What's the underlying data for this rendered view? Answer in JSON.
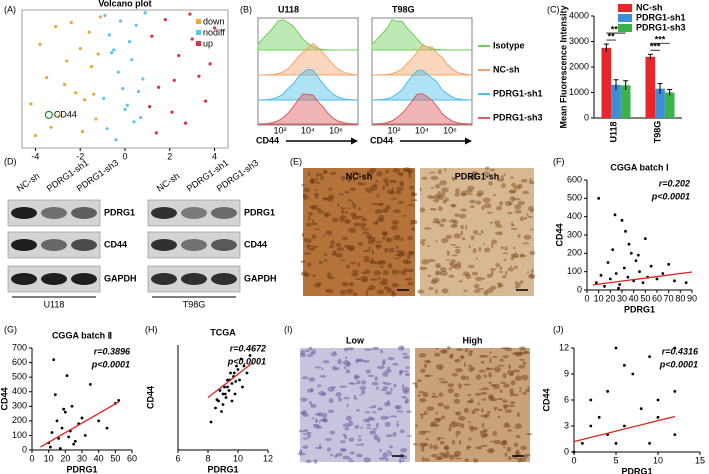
{
  "chart_data": [
    {
      "type": "scatter",
      "title": "Volcano plot",
      "xlim": [
        -4.6,
        4.6
      ],
      "ylim": [
        0,
        10
      ],
      "xticks": [
        -4,
        -2,
        0,
        2,
        4
      ],
      "box": true,
      "legend": "top-right",
      "series": [
        {
          "name": "down",
          "color": "#e8a83a",
          "x": [
            -4.2,
            -3.8,
            -3.5,
            -3.1,
            -2.9,
            -2.6,
            -2.4,
            -2.2,
            -2.0,
            -1.8,
            -1.6,
            -1.5,
            -1.3,
            -1.2,
            -1.1,
            -3.3,
            -2.7,
            -1.9,
            -1.4,
            -4.0
          ],
          "values": [
            3.2,
            7.5,
            5.1,
            8.8,
            2.4,
            6.3,
            9.1,
            4.0,
            7.2,
            3.5,
            8.4,
            5.9,
            2.1,
            6.8,
            9.5,
            1.5,
            4.6,
            1.2,
            3.9,
            0.9
          ]
        },
        {
          "name": "nodiff",
          "color": "#5bc8e8",
          "x": [
            -0.9,
            -0.7,
            -0.5,
            -0.3,
            -0.1,
            0.1,
            0.3,
            0.5,
            0.7,
            0.9,
            -0.8,
            -0.4,
            0.0,
            0.4,
            0.8,
            -0.6,
            -0.2,
            0.2,
            0.6,
            -0.95
          ],
          "values": [
            9.6,
            8.2,
            7.1,
            5.5,
            4.3,
            3.1,
            6.4,
            8.9,
            2.2,
            9.8,
            1.4,
            0.6,
            2.8,
            1.9,
            5.0,
            6.9,
            9.2,
            7.7,
            4.1,
            3.6
          ]
        },
        {
          "name": "up",
          "color": "#e03040",
          "x": [
            1.2,
            1.5,
            1.8,
            2.1,
            2.4,
            2.7,
            3.0,
            3.3,
            3.6,
            4.0,
            1.4,
            2.2,
            2.9,
            3.8,
            1.1
          ],
          "values": [
            8.1,
            4.4,
            9.3,
            2.6,
            6.7,
            1.8,
            7.9,
            5.2,
            3.4,
            8.7,
            1.1,
            4.9,
            9.7,
            6.1,
            3.0
          ]
        }
      ],
      "highlight": {
        "text": "CD44",
        "x": -3.4,
        "y": 2.4
      }
    },
    {
      "type": "bar",
      "ylabel": "Mean Fluorescence Intensity",
      "categories": [
        "U118",
        "T98G"
      ],
      "ylim": [
        0,
        4000
      ],
      "yticks": [
        0,
        1000,
        2000,
        3000,
        4000
      ],
      "legend": "top-right",
      "series": [
        {
          "name": "NC-sh",
          "color": "#e8252a",
          "values": [
            2750,
            2400
          ],
          "errors": [
            150,
            100
          ]
        },
        {
          "name": "PDRG1-sh1",
          "color": "#3b8fd8",
          "values": [
            1300,
            1150
          ],
          "errors": [
            200,
            200
          ]
        },
        {
          "name": "PDRG1-sh3",
          "color": "#3cb34a",
          "values": [
            1280,
            1000
          ],
          "errors": [
            180,
            120
          ]
        }
      ],
      "significance": [
        "***",
        "**",
        "***",
        "***"
      ]
    },
    {
      "type": "scatter",
      "title": "CGGA batch Ⅰ",
      "xlabel": "PDRG1",
      "ylabel": "CD44",
      "xlim": [
        0,
        90
      ],
      "ylim": [
        0,
        600
      ],
      "xticks": [
        0,
        10,
        20,
        30,
        40,
        50,
        60,
        70,
        80,
        90
      ],
      "yticks": [
        0,
        100,
        200,
        300,
        400,
        500,
        600
      ],
      "color": "#000000",
      "x": [
        8,
        12,
        15,
        18,
        20,
        22,
        25,
        28,
        30,
        32,
        35,
        38,
        40,
        42,
        45,
        48,
        50,
        55,
        60,
        65,
        70,
        75,
        85,
        10,
        24,
        33,
        44,
        52,
        27,
        36
      ],
      "values": [
        40,
        80,
        20,
        150,
        60,
        220,
        90,
        30,
        380,
        120,
        70,
        200,
        50,
        160,
        100,
        40,
        280,
        130,
        60,
        90,
        140,
        50,
        40,
        500,
        410,
        320,
        190,
        70,
        10,
        250
      ],
      "fit": {
        "x": [
          5,
          90
        ],
        "y": [
          28,
          98
        ],
        "color": "#e02020"
      },
      "stats": [
        "r=0.202",
        "p<0.0001"
      ]
    },
    {
      "type": "scatter",
      "title": "CGGA batch Ⅱ",
      "xlabel": "PDRG1",
      "ylabel": "CD44",
      "xlim": [
        0,
        60
      ],
      "ylim": [
        0,
        700
      ],
      "xticks": [
        0,
        10,
        20,
        30,
        40,
        50,
        60
      ],
      "yticks": [
        0,
        100,
        200,
        300,
        400,
        500,
        600,
        700
      ],
      "color": "#000000",
      "x": [
        10,
        12,
        14,
        15,
        16,
        18,
        20,
        22,
        24,
        25,
        28,
        30,
        32,
        35,
        40,
        45,
        50,
        13,
        17,
        21,
        26,
        11,
        19,
        23,
        52
      ],
      "values": [
        50,
        120,
        380,
        200,
        80,
        150,
        260,
        90,
        300,
        40,
        180,
        220,
        100,
        450,
        200,
        150,
        320,
        620,
        10,
        510,
        60,
        20,
        280,
        130,
        340
      ],
      "fit": {
        "x": [
          5,
          52
        ],
        "y": [
          20,
          330
        ],
        "color": "#e02020"
      },
      "stats": [
        "r=0.3896",
        "p<0.0001"
      ]
    },
    {
      "type": "scatter",
      "title": "TCGA",
      "xlabel": "PDRG1",
      "ylabel": "CD44",
      "xlim": [
        6,
        12
      ],
      "ylim": [
        2,
        17
      ],
      "xticks": [
        6,
        8,
        10,
        12
      ],
      "color": "#000000",
      "x": [
        8.2,
        8.5,
        8.7,
        8.9,
        9.0,
        9.1,
        9.2,
        9.3,
        9.4,
        9.5,
        9.6,
        9.7,
        9.8,
        9.9,
        10.0,
        10.1,
        10.2,
        10.4,
        10.6,
        10.8,
        9.0,
        9.3,
        9.6,
        8.8,
        9.45,
        9.75,
        10.3,
        8.6,
        9.15,
        9.85
      ],
      "values": [
        6,
        8,
        9,
        7.5,
        10,
        11,
        9.5,
        12,
        10.5,
        13,
        11.5,
        12.5,
        10,
        14,
        13.5,
        12,
        15,
        14,
        13,
        15.5,
        8.5,
        11,
        9,
        10.5,
        12,
        13,
        11,
        9.2,
        10,
        11.8
      ],
      "fit": {
        "x": [
          8,
          11
        ],
        "y": [
          9.5,
          14.5
        ],
        "color": "#e02020"
      },
      "stats": [
        "r=0.4672",
        "p<0.0001"
      ]
    },
    {
      "type": "scatter",
      "xlabel": "PDRG1",
      "ylabel": "CD44",
      "xlim": [
        0,
        15
      ],
      "ylim": [
        0,
        12
      ],
      "xticks": [
        0,
        5,
        10,
        15
      ],
      "yticks": [
        0,
        3,
        6,
        9,
        12
      ],
      "color": "#000000",
      "x": [
        0,
        1,
        2,
        2,
        3,
        4,
        4,
        5,
        5,
        6,
        7,
        8,
        9,
        9,
        10,
        10,
        12,
        12,
        12,
        6
      ],
      "values": [
        0,
        1,
        3,
        6,
        4,
        2,
        7,
        12,
        1,
        3,
        9,
        5,
        11,
        1,
        6,
        4,
        12,
        2,
        7,
        10
      ],
      "fit": {
        "x": [
          0,
          12
        ],
        "y": [
          1.2,
          4.1
        ],
        "color": "#e02020"
      },
      "stats": [
        "r=0.4316",
        "p<0.0001"
      ]
    }
  ],
  "figure": {
    "panel_labels": [
      "(A)",
      "(B)",
      "(C)",
      "(D)",
      "(E)",
      "(F)",
      "(G)",
      "(H)",
      "(I)",
      "(J)"
    ],
    "flow": {
      "cells": [
        "U118",
        "T98G"
      ],
      "axis_label": "CD44",
      "ticks": [
        "10²",
        "10⁴",
        "10⁶"
      ],
      "series": [
        {
          "name": "Isotype",
          "color": "#6ccf5a"
        },
        {
          "name": "NC-sh",
          "color": "#f4a36a"
        },
        {
          "name": "PDRG1-sh1",
          "color": "#4cbfea"
        },
        {
          "name": "PDRG1-sh3",
          "color": "#e05a5a"
        }
      ]
    },
    "blots": [
      {
        "cell": "U118",
        "lanes": [
          "NC-sh",
          "PDRG1-sh1",
          "PDRG1-sh3"
        ],
        "rows": [
          "PDRG1",
          "CD44",
          "GAPDH"
        ]
      },
      {
        "cell": "T98G",
        "lanes": [
          "NC-sh",
          "PDRG1-sh1",
          "PDRG1-sh3"
        ],
        "rows": [
          "PDRG1",
          "CD44",
          "GAPDH"
        ]
      }
    ],
    "ihc_e": [
      "NC-sh",
      "PDRG1-sh"
    ],
    "ihc_i": [
      "Low",
      "High"
    ]
  }
}
